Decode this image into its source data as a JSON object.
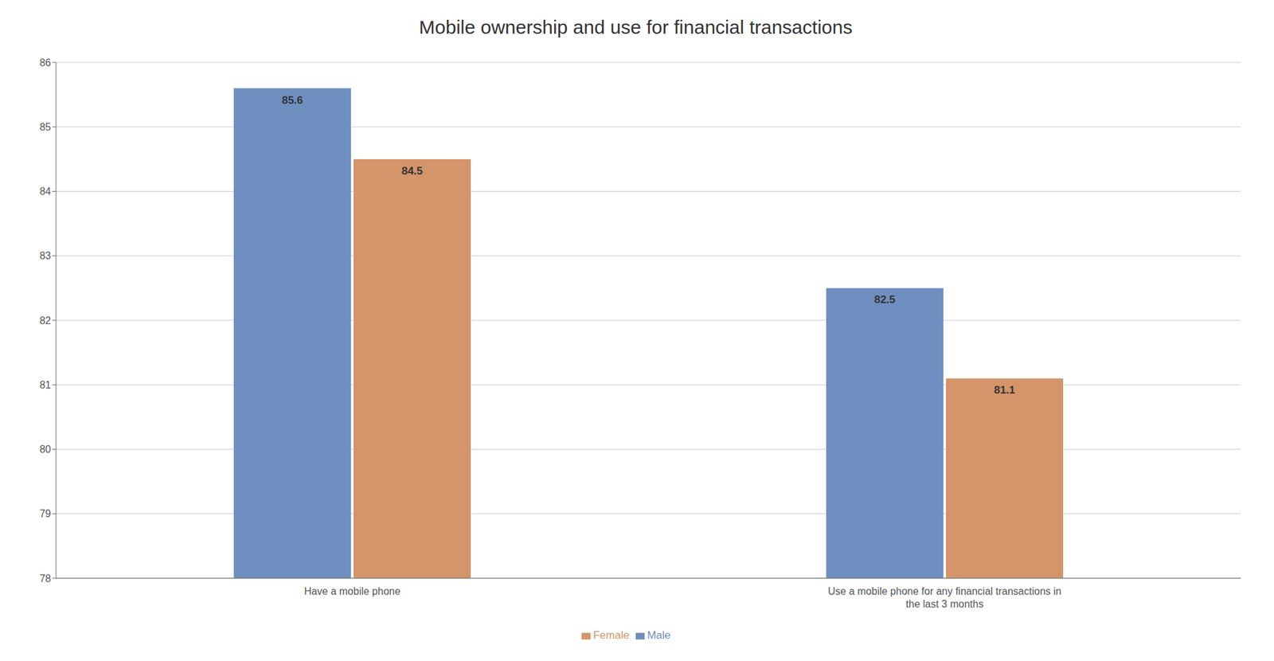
{
  "chart_data": {
    "type": "bar",
    "title": "Mobile ownership and use for financial transactions",
    "categories": [
      "Have a mobile phone",
      "Use a mobile phone for any financial transactions in\nthe last 3 months"
    ],
    "series": [
      {
        "name": "Male",
        "color": "#6f8fc0",
        "values": [
          85.6,
          82.5
        ]
      },
      {
        "name": "Female",
        "color": "#d4956a",
        "values": [
          84.5,
          81.1
        ]
      }
    ],
    "ylim": [
      78,
      86
    ],
    "yticks": [
      78,
      79,
      80,
      81,
      82,
      83,
      84,
      85,
      86
    ],
    "grid": true,
    "legend": "bottom",
    "data_labels": true
  }
}
